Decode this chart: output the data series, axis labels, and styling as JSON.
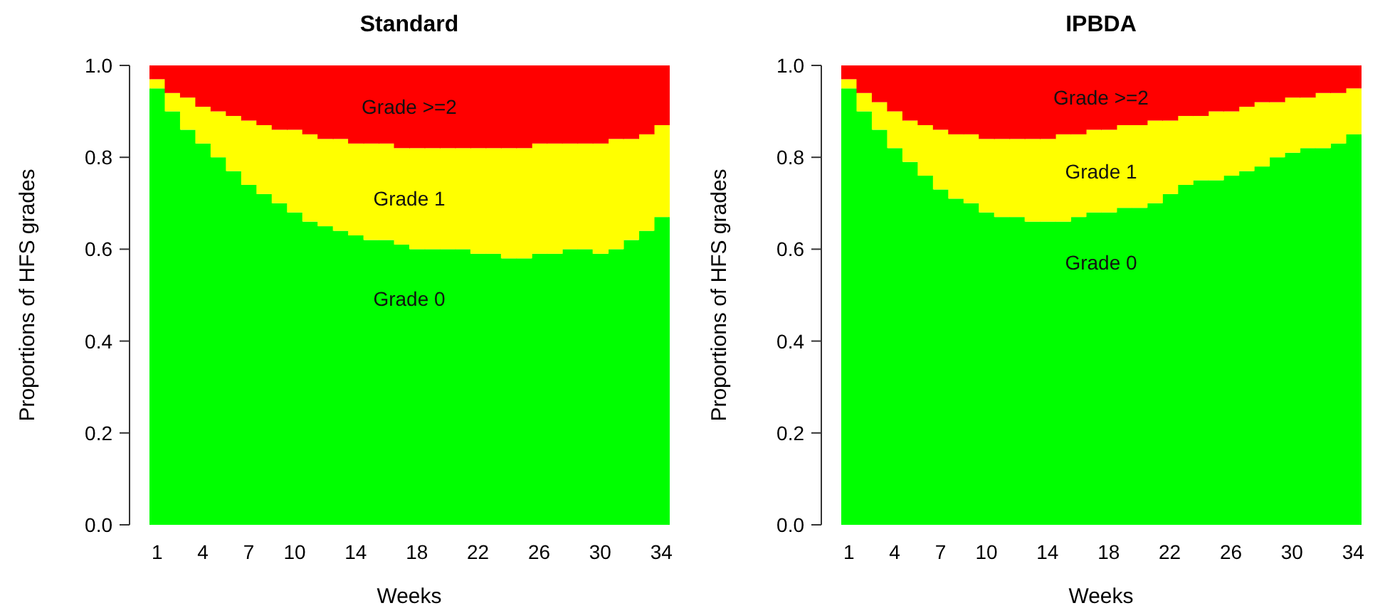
{
  "chart_data": [
    {
      "type": "bar",
      "title": "Standard",
      "xlabel": "Weeks",
      "ylabel": "Proportions of HFS grades",
      "stacked": true,
      "legend": false,
      "x": [
        1,
        2,
        3,
        4,
        5,
        6,
        7,
        8,
        9,
        10,
        11,
        12,
        13,
        14,
        15,
        16,
        17,
        18,
        19,
        20,
        21,
        22,
        23,
        24,
        25,
        26,
        27,
        28,
        29,
        30,
        31,
        32,
        33,
        34
      ],
      "xlim": [
        0.5,
        34.5
      ],
      "xticks": [
        1,
        4,
        7,
        10,
        14,
        18,
        22,
        26,
        30,
        34
      ],
      "ylim": [
        0,
        1
      ],
      "yticks": [
        {
          "value": 0,
          "label": "0.0"
        },
        {
          "value": 0.2,
          "label": "0.2"
        },
        {
          "value": 0.4,
          "label": "0.4"
        },
        {
          "value": 0.6,
          "label": "0.6"
        },
        {
          "value": 0.8,
          "label": "0.8"
        },
        {
          "value": 1,
          "label": "1.0"
        }
      ],
      "series": [
        {
          "name": "Grade 0",
          "color": "#00ff00",
          "values": [
            0.95,
            0.9,
            0.86,
            0.83,
            0.8,
            0.77,
            0.74,
            0.72,
            0.7,
            0.68,
            0.66,
            0.65,
            0.64,
            0.63,
            0.62,
            0.62,
            0.61,
            0.6,
            0.6,
            0.6,
            0.6,
            0.59,
            0.59,
            0.58,
            0.58,
            0.59,
            0.59,
            0.6,
            0.6,
            0.59,
            0.6,
            0.62,
            0.64,
            0.67
          ]
        },
        {
          "name": "Grade 1",
          "color": "#ffff00",
          "values": [
            0.02,
            0.04,
            0.07,
            0.08,
            0.1,
            0.12,
            0.14,
            0.15,
            0.16,
            0.18,
            0.19,
            0.19,
            0.2,
            0.2,
            0.21,
            0.21,
            0.21,
            0.22,
            0.22,
            0.22,
            0.22,
            0.23,
            0.23,
            0.24,
            0.24,
            0.24,
            0.24,
            0.23,
            0.23,
            0.24,
            0.24,
            0.22,
            0.21,
            0.2
          ]
        },
        {
          "name": "Grade >=2",
          "color": "#ff0000",
          "values": [
            0.03,
            0.06,
            0.07,
            0.09,
            0.1,
            0.11,
            0.12,
            0.13,
            0.14,
            0.14,
            0.15,
            0.16,
            0.16,
            0.17,
            0.17,
            0.17,
            0.18,
            0.18,
            0.18,
            0.18,
            0.18,
            0.18,
            0.18,
            0.18,
            0.18,
            0.17,
            0.17,
            0.17,
            0.17,
            0.17,
            0.16,
            0.16,
            0.15,
            0.13
          ]
        }
      ]
    },
    {
      "type": "bar",
      "title": "IPBDA",
      "xlabel": "Weeks",
      "ylabel": "Proportions of HFS grades",
      "stacked": true,
      "legend": false,
      "x": [
        1,
        2,
        3,
        4,
        5,
        6,
        7,
        8,
        9,
        10,
        11,
        12,
        13,
        14,
        15,
        16,
        17,
        18,
        19,
        20,
        21,
        22,
        23,
        24,
        25,
        26,
        27,
        28,
        29,
        30,
        31,
        32,
        33,
        34
      ],
      "xlim": [
        0.5,
        34.5
      ],
      "xticks": [
        1,
        4,
        7,
        10,
        14,
        18,
        22,
        26,
        30,
        34
      ],
      "ylim": [
        0,
        1
      ],
      "yticks": [
        {
          "value": 0,
          "label": "0.0"
        },
        {
          "value": 0.2,
          "label": "0.2"
        },
        {
          "value": 0.4,
          "label": "0.4"
        },
        {
          "value": 0.6,
          "label": "0.6"
        },
        {
          "value": 0.8,
          "label": "0.8"
        },
        {
          "value": 1,
          "label": "1.0"
        }
      ],
      "series": [
        {
          "name": "Grade 0",
          "color": "#00ff00",
          "values": [
            0.95,
            0.9,
            0.86,
            0.82,
            0.79,
            0.76,
            0.73,
            0.71,
            0.7,
            0.68,
            0.67,
            0.67,
            0.66,
            0.66,
            0.66,
            0.67,
            0.68,
            0.68,
            0.69,
            0.69,
            0.7,
            0.72,
            0.74,
            0.75,
            0.75,
            0.76,
            0.77,
            0.78,
            0.8,
            0.81,
            0.82,
            0.82,
            0.83,
            0.85
          ]
        },
        {
          "name": "Grade 1",
          "color": "#ffff00",
          "values": [
            0.02,
            0.04,
            0.06,
            0.08,
            0.09,
            0.11,
            0.13,
            0.14,
            0.15,
            0.16,
            0.17,
            0.17,
            0.18,
            0.18,
            0.19,
            0.18,
            0.18,
            0.18,
            0.18,
            0.18,
            0.18,
            0.16,
            0.15,
            0.14,
            0.15,
            0.14,
            0.14,
            0.14,
            0.12,
            0.12,
            0.11,
            0.12,
            0.11,
            0.1
          ]
        },
        {
          "name": "Grade >=2",
          "color": "#ff0000",
          "values": [
            0.03,
            0.06,
            0.08,
            0.1,
            0.12,
            0.13,
            0.14,
            0.15,
            0.15,
            0.16,
            0.16,
            0.16,
            0.16,
            0.16,
            0.15,
            0.15,
            0.14,
            0.14,
            0.13,
            0.13,
            0.12,
            0.12,
            0.11,
            0.11,
            0.1,
            0.1,
            0.09,
            0.08,
            0.08,
            0.07,
            0.07,
            0.06,
            0.06,
            0.05
          ]
        }
      ]
    }
  ]
}
